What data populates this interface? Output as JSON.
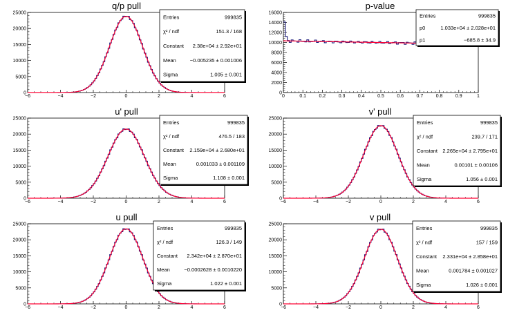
{
  "chart_data": [
    {
      "type": "histogram",
      "title": "q/p pull",
      "xlim": [
        -6,
        6
      ],
      "ylim": [
        0,
        25000
      ],
      "xticks": [
        "−6",
        "−4",
        "−2",
        "0",
        "2",
        "4",
        "6"
      ],
      "yticks": [
        "0",
        "5000",
        "10000",
        "15000",
        "20000",
        "25000"
      ],
      "fit": {
        "function": "gaus",
        "amplitude": 23800,
        "mean": -0.005235,
        "sigma": 1.005
      },
      "stats": [
        {
          "label": "Entries",
          "value": "999835"
        },
        {
          "label": "χ² / ndf",
          "value": "151.3 / 168"
        },
        {
          "label": "Constant",
          "value": "2.38e+04 ± 2.92e+01"
        },
        {
          "label": "Mean",
          "value": "−0.005235 ± 0.001006"
        },
        {
          "label": "Sigma",
          "value": "1.005 ± 0.001"
        }
      ]
    },
    {
      "type": "histogram",
      "title": "p-value",
      "xlim": [
        0,
        1
      ],
      "ylim": [
        0,
        16000
      ],
      "xticks": [
        "0",
        "0.1",
        "0.2",
        "0.3",
        "0.4",
        "0.5",
        "0.6",
        "0.7",
        "0.8",
        "0.9",
        "1"
      ],
      "yticks": [
        "0",
        "2000",
        "4000",
        "6000",
        "8000",
        "10000",
        "12000",
        "14000",
        "16000"
      ],
      "fit": {
        "function": "pol1",
        "p0": 10330,
        "p1": -685.8
      },
      "stats": [
        {
          "label": "Entries",
          "value": "999835"
        },
        {
          "label": "p0",
          "value": "1.033e+04 ± 2.028e+01"
        },
        {
          "label": "p1",
          "value": "−685.8 ± 34.9"
        }
      ]
    },
    {
      "type": "histogram",
      "title": "u' pull",
      "xlim": [
        -6,
        6
      ],
      "ylim": [
        0,
        25000
      ],
      "xticks": [
        "−6",
        "−4",
        "−2",
        "0",
        "2",
        "4",
        "6"
      ],
      "yticks": [
        "0",
        "5000",
        "10000",
        "15000",
        "20000",
        "25000"
      ],
      "fit": {
        "function": "gaus",
        "amplitude": 21590,
        "mean": 0.001033,
        "sigma": 1.108
      },
      "stats": [
        {
          "label": "Entries",
          "value": "999835"
        },
        {
          "label": "χ² / ndf",
          "value": "476.5 / 183"
        },
        {
          "label": "Constant",
          "value": "2.159e+04 ± 2.680e+01"
        },
        {
          "label": "Mean",
          "value": "0.001033 ± 0.001109"
        },
        {
          "label": "Sigma",
          "value": "1.108 ± 0.001"
        }
      ]
    },
    {
      "type": "histogram",
      "title": "v' pull",
      "xlim": [
        -6,
        6
      ],
      "ylim": [
        0,
        25000
      ],
      "xticks": [
        "−6",
        "−4",
        "−2",
        "0",
        "2",
        "4",
        "6"
      ],
      "yticks": [
        "0",
        "5000",
        "10000",
        "15000",
        "20000",
        "25000"
      ],
      "fit": {
        "function": "gaus",
        "amplitude": 22650,
        "mean": 0.00101,
        "sigma": 1.056
      },
      "stats": [
        {
          "label": "Entries",
          "value": "999835"
        },
        {
          "label": "χ² / ndf",
          "value": "239.7 / 171"
        },
        {
          "label": "Constant",
          "value": "2.265e+04 ± 2.795e+01"
        },
        {
          "label": "Mean",
          "value": "0.00101 ± 0.00106"
        },
        {
          "label": "Sigma",
          "value": "1.056 ± 0.001"
        }
      ]
    },
    {
      "type": "histogram",
      "title": "u pull",
      "xlim": [
        -6,
        6
      ],
      "ylim": [
        0,
        25000
      ],
      "xticks": [
        "−6",
        "−4",
        "−2",
        "0",
        "2",
        "4",
        "6"
      ],
      "yticks": [
        "0",
        "5000",
        "10000",
        "15000",
        "20000",
        "25000"
      ],
      "fit": {
        "function": "gaus",
        "amplitude": 23420,
        "mean": -0.0002628,
        "sigma": 1.022
      },
      "stats": [
        {
          "label": "Entries",
          "value": "999835"
        },
        {
          "label": "χ² / ndf",
          "value": "126.3 / 149"
        },
        {
          "label": "Constant",
          "value": "2.342e+04 ± 2.870e+01"
        },
        {
          "label": "Mean",
          "value": "−0.0002628 ± 0.0010220"
        },
        {
          "label": "Sigma",
          "value": "1.022 ± 0.001"
        }
      ]
    },
    {
      "type": "histogram",
      "title": "v pull",
      "xlim": [
        -6,
        6
      ],
      "ylim": [
        0,
        25000
      ],
      "xticks": [
        "−6",
        "−4",
        "−2",
        "0",
        "2",
        "4",
        "6"
      ],
      "yticks": [
        "0",
        "5000",
        "10000",
        "15000",
        "20000",
        "25000"
      ],
      "fit": {
        "function": "gaus",
        "amplitude": 23310,
        "mean": 0.001784,
        "sigma": 1.026
      },
      "stats": [
        {
          "label": "Entries",
          "value": "999835"
        },
        {
          "label": "χ² / ndf",
          "value": "157 / 159"
        },
        {
          "label": "Constant",
          "value": "2.331e+04 ± 2.858e+01"
        },
        {
          "label": "Mean",
          "value": "0.001784 ± 0.001027"
        },
        {
          "label": "Sigma",
          "value": "1.026 ± 0.001"
        }
      ]
    }
  ],
  "colors": {
    "histogram": "#1a1a7a",
    "fit": "#ff0033",
    "frame": "#000000"
  }
}
